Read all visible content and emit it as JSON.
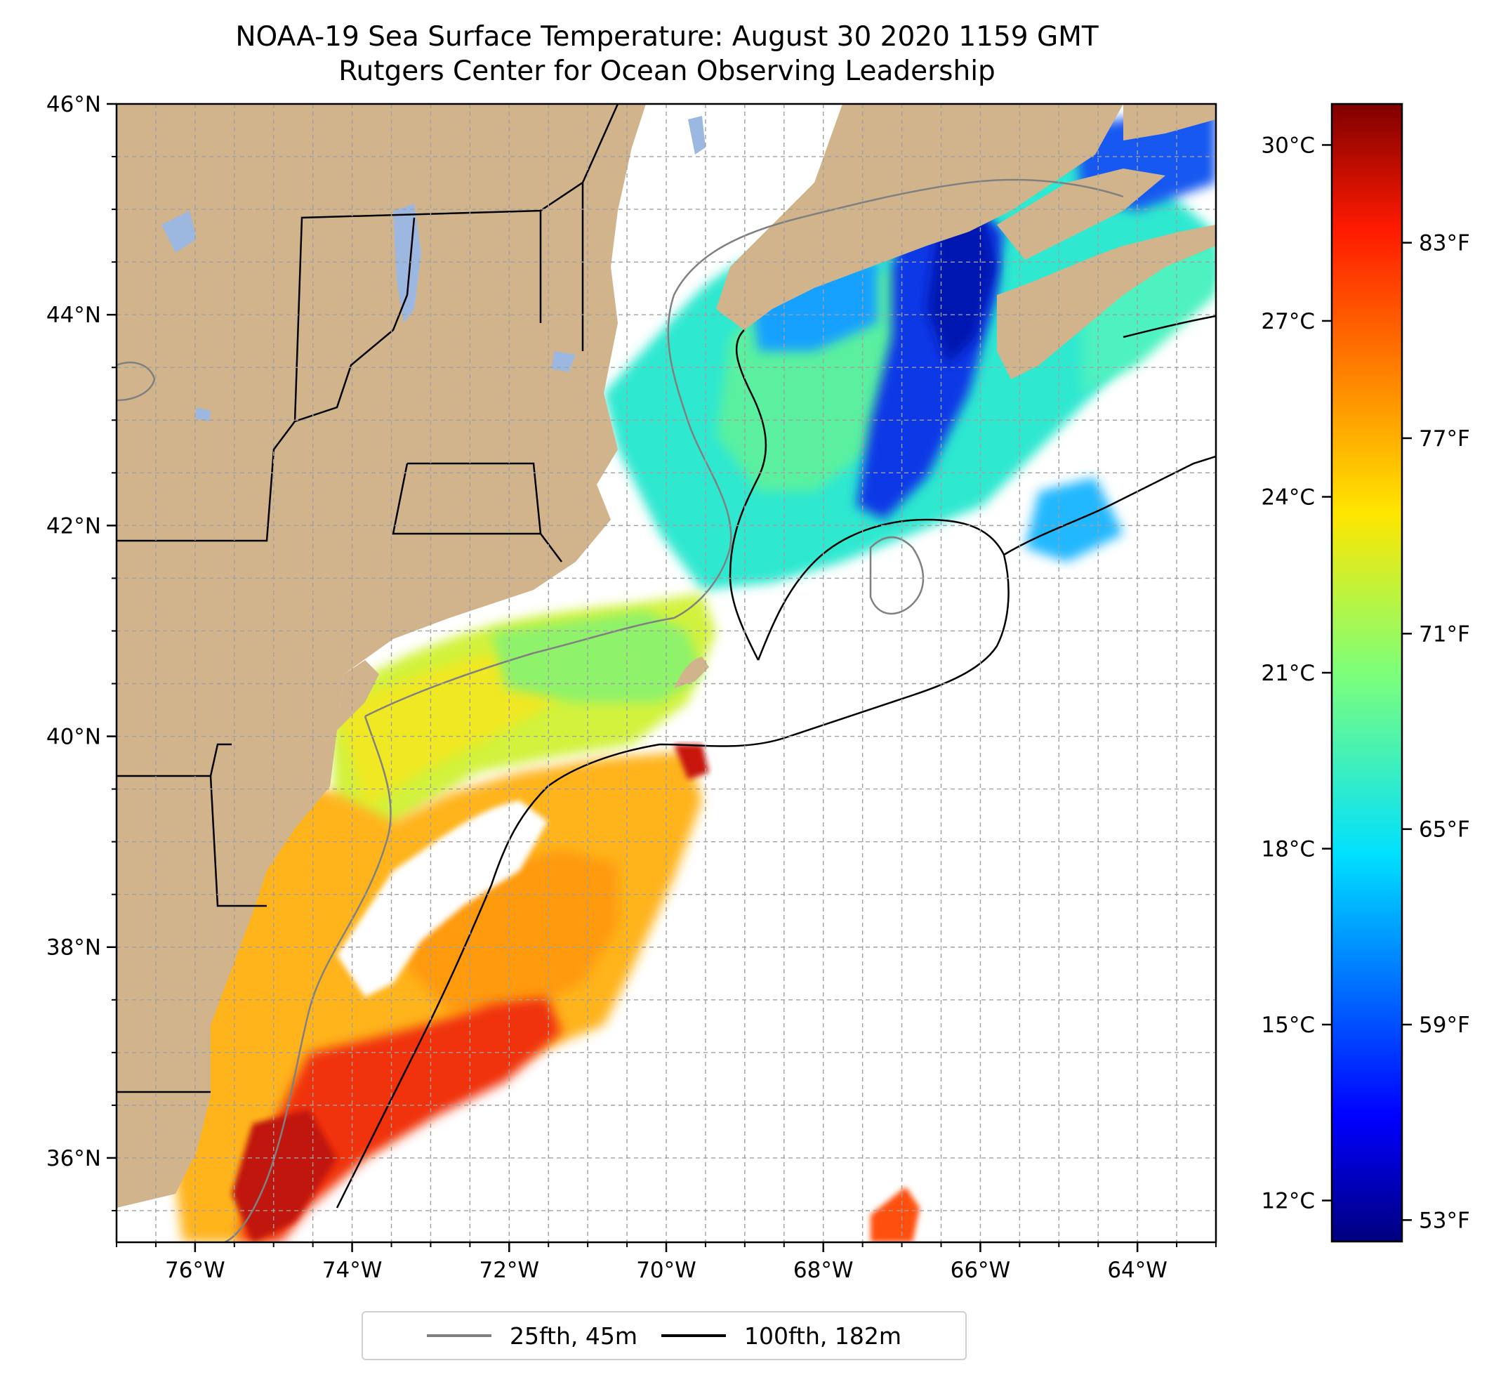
{
  "title": "NOAA-19 Sea Surface Temperature: August 30 2020 1159 GMT",
  "subtitle": "Rutgers Center for Ocean Observing Leadership",
  "map": {
    "lon_range": [
      -77,
      -63
    ],
    "lat_range": [
      35.2,
      46
    ],
    "lon_ticks": [
      {
        "value": -76,
        "label": "76°W"
      },
      {
        "value": -74,
        "label": "74°W"
      },
      {
        "value": -72,
        "label": "72°W"
      },
      {
        "value": -70,
        "label": "70°W"
      },
      {
        "value": -68,
        "label": "68°W"
      },
      {
        "value": -66,
        "label": "66°W"
      },
      {
        "value": -64,
        "label": "64°W"
      }
    ],
    "lat_ticks": [
      {
        "value": 46,
        "label": "46°N"
      },
      {
        "value": 44,
        "label": "44°N"
      },
      {
        "value": 42,
        "label": "42°N"
      },
      {
        "value": 40,
        "label": "40°N"
      },
      {
        "value": 38,
        "label": "38°N"
      },
      {
        "value": 36,
        "label": "36°N"
      }
    ],
    "land_color": "#d2b48c",
    "water_body_color": "#9db8e0",
    "grid": true
  },
  "colorbar": {
    "range_c": [
      11.3,
      30.7
    ],
    "celsius_ticks": [
      {
        "value": 30,
        "label": "30°C"
      },
      {
        "value": 27,
        "label": "27°C"
      },
      {
        "value": 24,
        "label": "24°C"
      },
      {
        "value": 21,
        "label": "21°C"
      },
      {
        "value": 18,
        "label": "18°C"
      },
      {
        "value": 15,
        "label": "15°C"
      },
      {
        "value": 12,
        "label": "12°C"
      }
    ],
    "fahrenheit_ticks": [
      {
        "value": 83,
        "label": "83°F"
      },
      {
        "value": 77,
        "label": "77°F"
      },
      {
        "value": 71,
        "label": "71°F"
      },
      {
        "value": 65,
        "label": "65°F"
      },
      {
        "value": 59,
        "label": "59°F"
      },
      {
        "value": 53,
        "label": "53°F"
      }
    ],
    "colormap": "jet"
  },
  "legend": {
    "items": [
      {
        "label": "25fth, 45m",
        "color": "#808080"
      },
      {
        "label": "100fth, 182m",
        "color": "#000000"
      }
    ]
  }
}
